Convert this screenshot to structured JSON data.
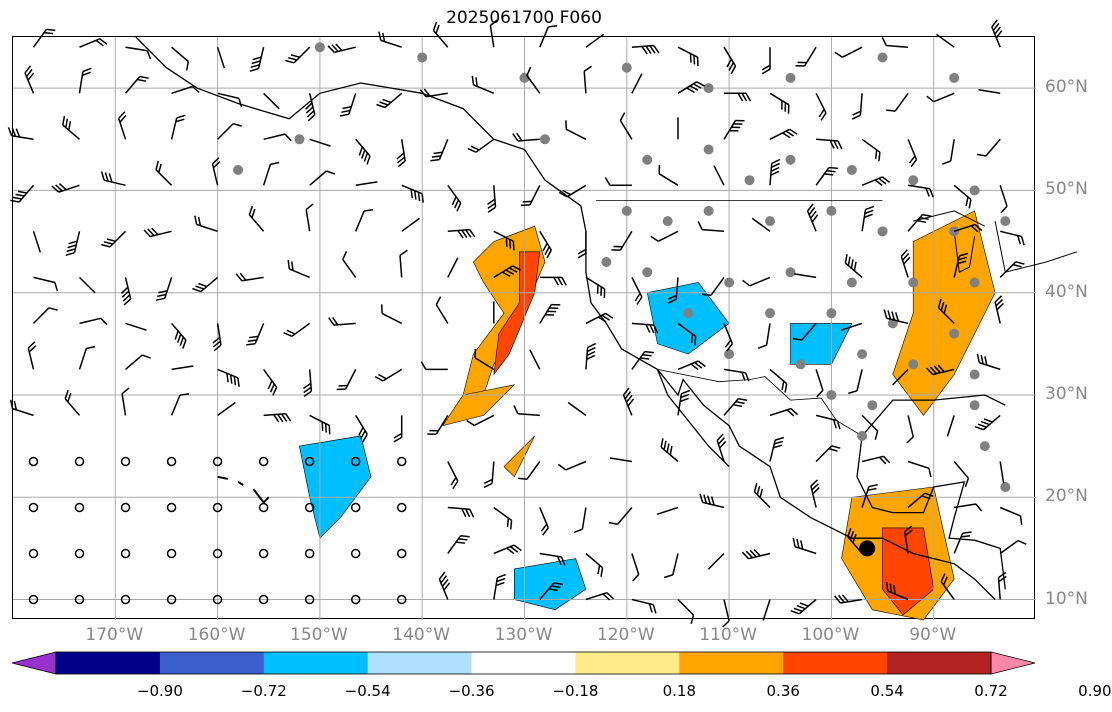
{
  "title": "2025061700 F060",
  "lon_labels": [
    "170°W",
    "160°W",
    "150°W",
    "140°W",
    "130°W",
    "120°W",
    "110°W",
    "100°W",
    "90°W"
  ],
  "lat_labels": [
    "60°N",
    "50°N",
    "40°N",
    "30°N",
    "20°N",
    "10°N"
  ],
  "colorbar": {
    "ticks": [
      "−0.90",
      "−0.72",
      "−0.54",
      "−0.36",
      "−0.18",
      "0.18",
      "0.36",
      "0.54",
      "0.72",
      "0.90"
    ],
    "colors": [
      "#9932cc",
      "#00008b",
      "#3c5fcd",
      "#00bfff",
      "#b0e0ff",
      "#ffffff",
      "#ffec8b",
      "#ffa500",
      "#ff4500",
      "#b22222",
      "#ff88aa"
    ]
  },
  "map": {
    "extent_lon": [
      -180,
      -80
    ],
    "extent_lat": [
      8,
      65
    ],
    "colors": {
      "land": "#000000",
      "grid": "#aaaaaa",
      "stations": "#808080",
      "marker": "#000000"
    }
  }
}
